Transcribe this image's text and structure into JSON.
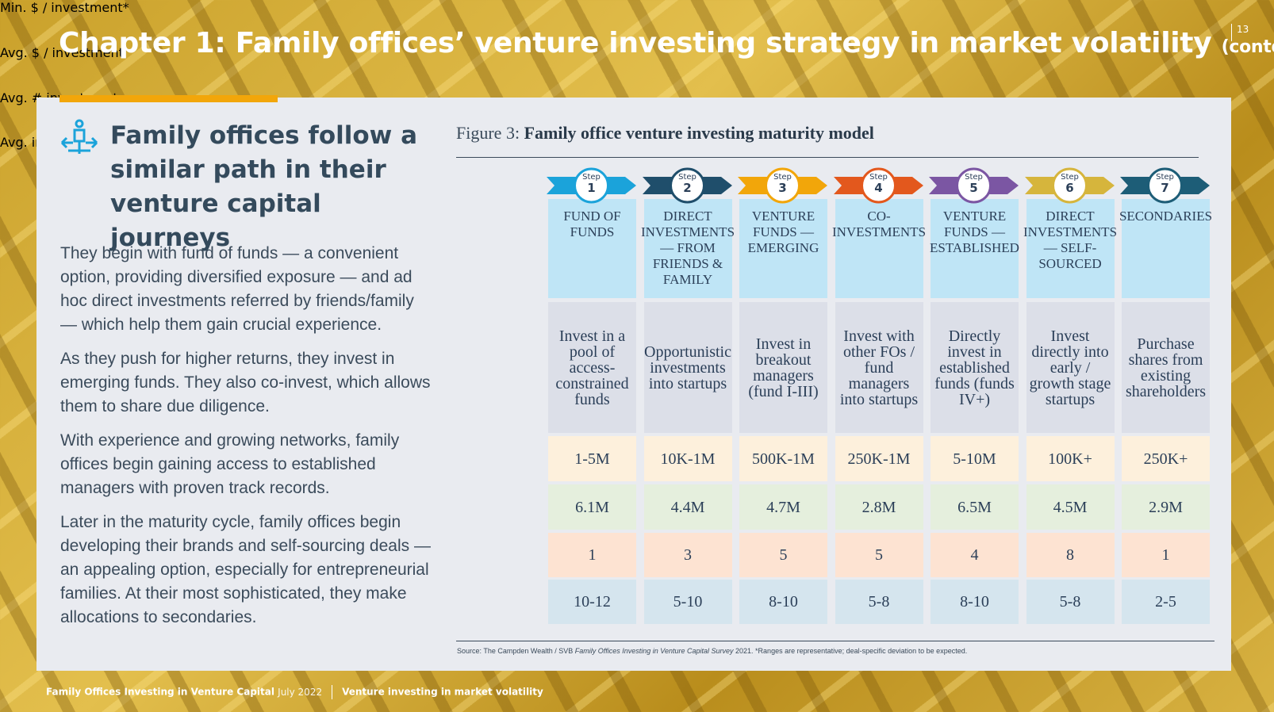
{
  "page_number": "13",
  "title": "Chapter 1: Family offices’ venture investing strategy in market volatility",
  "title_suffix": "(contd...)",
  "left": {
    "heading": "Family offices follow a similar path in their venture capital journeys",
    "paragraphs": [
      "They begin with fund of funds — a convenient option, providing diversified exposure — and ad hoc direct investments referred by friends/family — which help them gain crucial experience.",
      "As they push for higher returns, they invest in emerging funds. They also co-invest, which allows them to share due diligence.",
      "With experience and growing networks, family offices begin gaining access to established managers with proven track records.",
      "Later in the maturity cycle, family offices begin developing their brands and self-sourcing deals — an appealing option, especially for entrepreneurial families. At their most sophisticated, they make allocations to secondaries."
    ]
  },
  "figure": {
    "label": "Figure 3:",
    "title": "Family office venture investing maturity model",
    "step_label": "Step",
    "row_labels": [
      "Min. $ / investment*",
      "Avg. $ / investment",
      "Avg. # investments",
      "Avg. investment duration (yrs)*"
    ],
    "steps": [
      {
        "number": "1",
        "color": "#1ba3da",
        "name": "FUND OF FUNDS",
        "description": "Invest in a pool of access-constrained funds",
        "min": "1-5M",
        "avg": "6.1M",
        "count": 1,
        "duration": "10-12"
      },
      {
        "number": "2",
        "color": "#1f4e6b",
        "name": "DIRECT INVESTMENTS — FROM FRIENDS & FAMILY",
        "description": "Opportunistic investments into startups",
        "min": "10K-1M",
        "avg": "4.4M",
        "count": 3,
        "duration": "5-10"
      },
      {
        "number": "3",
        "color": "#f2a60a",
        "name": "VENTURE FUNDS — EMERGING",
        "description": "Invest in breakout managers (fund I-III)",
        "min": "500K-1M",
        "avg": "4.7M",
        "count": 5,
        "duration": "8-10"
      },
      {
        "number": "4",
        "color": "#e3581d",
        "name": "CO-INVESTMENTS",
        "description": "Invest with other FOs / fund managers into startups",
        "min": "250K-1M",
        "avg": "2.8M",
        "count": 5,
        "duration": "5-8"
      },
      {
        "number": "5",
        "color": "#7b56a3",
        "name": "VENTURE FUNDS — ESTABLISHED",
        "description": "Directly invest in established funds (funds IV+)",
        "min": "5-10M",
        "avg": "6.5M",
        "count": 4,
        "duration": "8-10"
      },
      {
        "number": "6",
        "color": "#d6b53c",
        "name": "DIRECT INVESTMENTS — SELF-SOURCED",
        "description": "Invest directly into early / growth stage startups",
        "min": "100K+",
        "avg": "4.5M",
        "count": 8,
        "duration": "5-8"
      },
      {
        "number": "7",
        "color": "#1d5d77",
        "name": "SECONDARIES",
        "description": "Purchase shares from existing shareholders",
        "min": "250K+",
        "avg": "2.9M",
        "count": 1,
        "duration": "2-5"
      }
    ],
    "source_prefix": "Source: The Campden Wealth / SVB",
    "source_italic": "Family Offices Investing in Venture Capital Survey",
    "source_suffix": "2021. *Ranges are representative; deal-specific deviation to be expected."
  },
  "footer": {
    "publication": "Family Offices Investing in Venture Capital",
    "date": "July 2022",
    "section": "Venture investing in market volatility"
  }
}
